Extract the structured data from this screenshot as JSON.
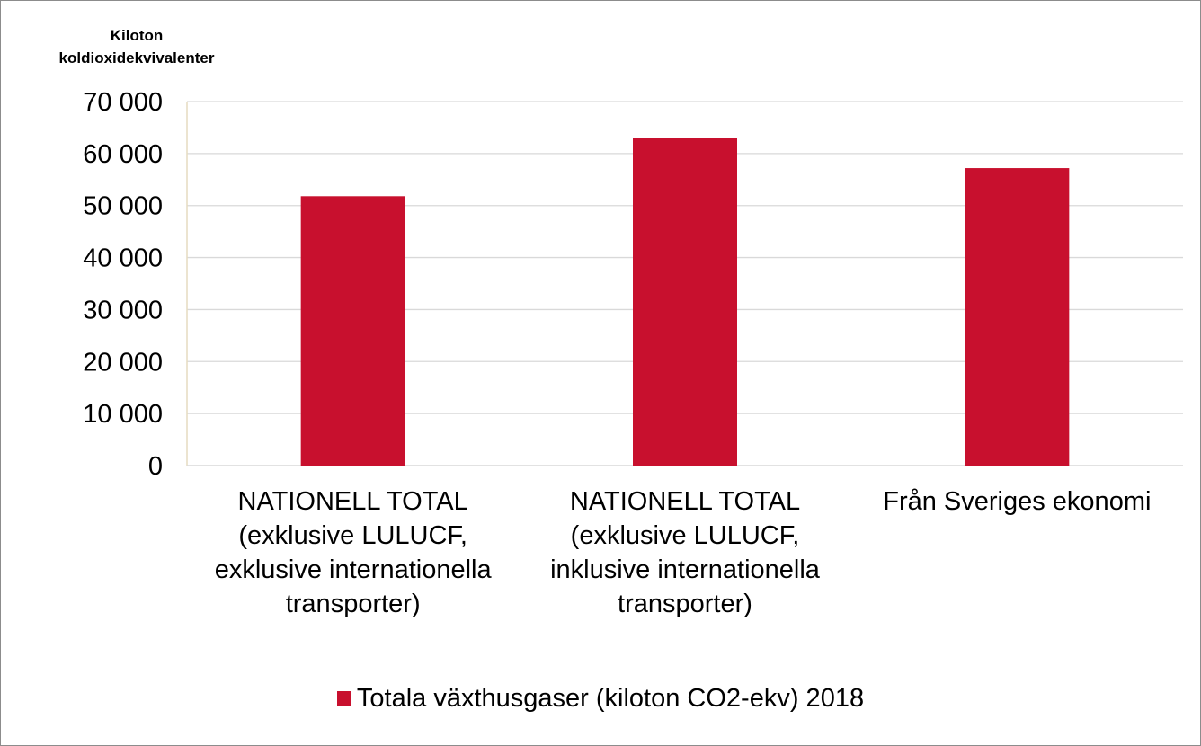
{
  "chart_data": {
    "type": "bar",
    "ylabel_lines": [
      "Kiloton",
      "koldioxidekvivalenter"
    ],
    "categories": [
      [
        "NATIONELL TOTAL",
        "(exklusive LULUCF,",
        "exklusive internationella",
        "transporter)"
      ],
      [
        "NATIONELL TOTAL",
        "(exklusive LULUCF,",
        "inklusive internationella",
        "transporter)"
      ],
      [
        "Från Sveriges ekonomi"
      ]
    ],
    "series": [
      {
        "name": "Totala växthusgaser (kiloton CO2-ekv) 2018",
        "values": [
          51800,
          63000,
          57200
        ],
        "color": "#c8102e"
      }
    ],
    "ylim": [
      0,
      70000
    ],
    "yticks": [
      "0",
      "10 000",
      "20 000",
      "30 000",
      "40 000",
      "50 000",
      "60 000",
      "70 000"
    ],
    "grid": true,
    "legend_position": "bottom"
  }
}
